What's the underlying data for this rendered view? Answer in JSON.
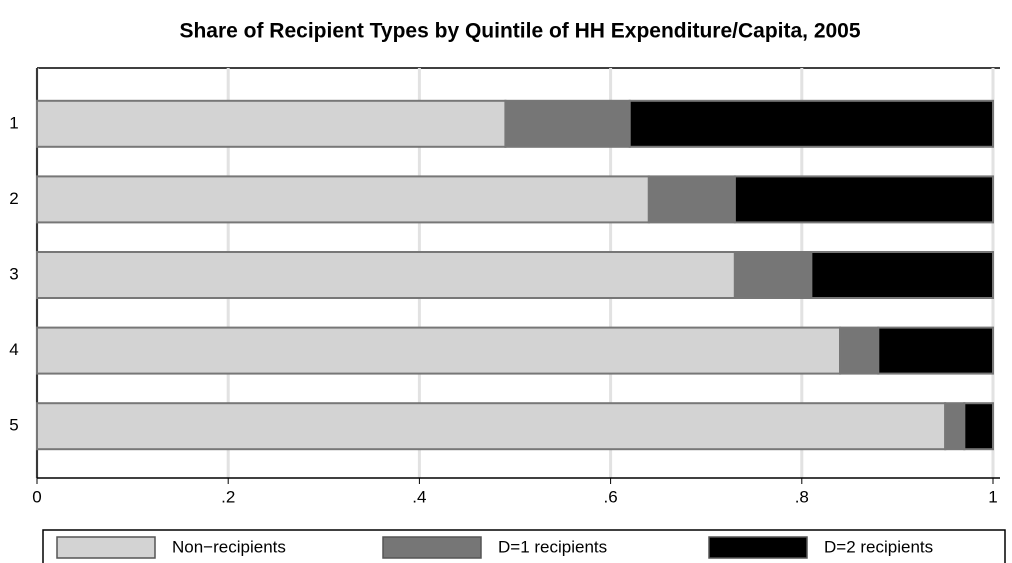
{
  "chart_data": {
    "type": "stacked-barh",
    "title": "Share of Recipient Types by Quintile of HH Expenditure/Capita, 2005",
    "categories": [
      "1",
      "2",
      "3",
      "4",
      "5"
    ],
    "series": [
      {
        "name": "Non−recipients",
        "color": "#d3d3d3",
        "values": [
          0.49,
          0.64,
          0.73,
          0.84,
          0.95
        ]
      },
      {
        "name": "D=1 recipients",
        "color": "#767676",
        "values": [
          0.13,
          0.09,
          0.08,
          0.04,
          0.02
        ]
      },
      {
        "name": "D=2 recipients",
        "color": "#000000",
        "values": [
          0.38,
          0.27,
          0.19,
          0.12,
          0.03
        ]
      }
    ],
    "xlim": [
      0,
      1
    ],
    "xticks": [
      0,
      {
        "value": 0.2,
        "label": ".2"
      },
      {
        "value": 0.4,
        "label": ".4"
      },
      {
        "value": 0.6,
        "label": ".6"
      },
      {
        "value": 0.8,
        "label": ".8"
      },
      1
    ],
    "grid": true,
    "legend": "bottom"
  }
}
